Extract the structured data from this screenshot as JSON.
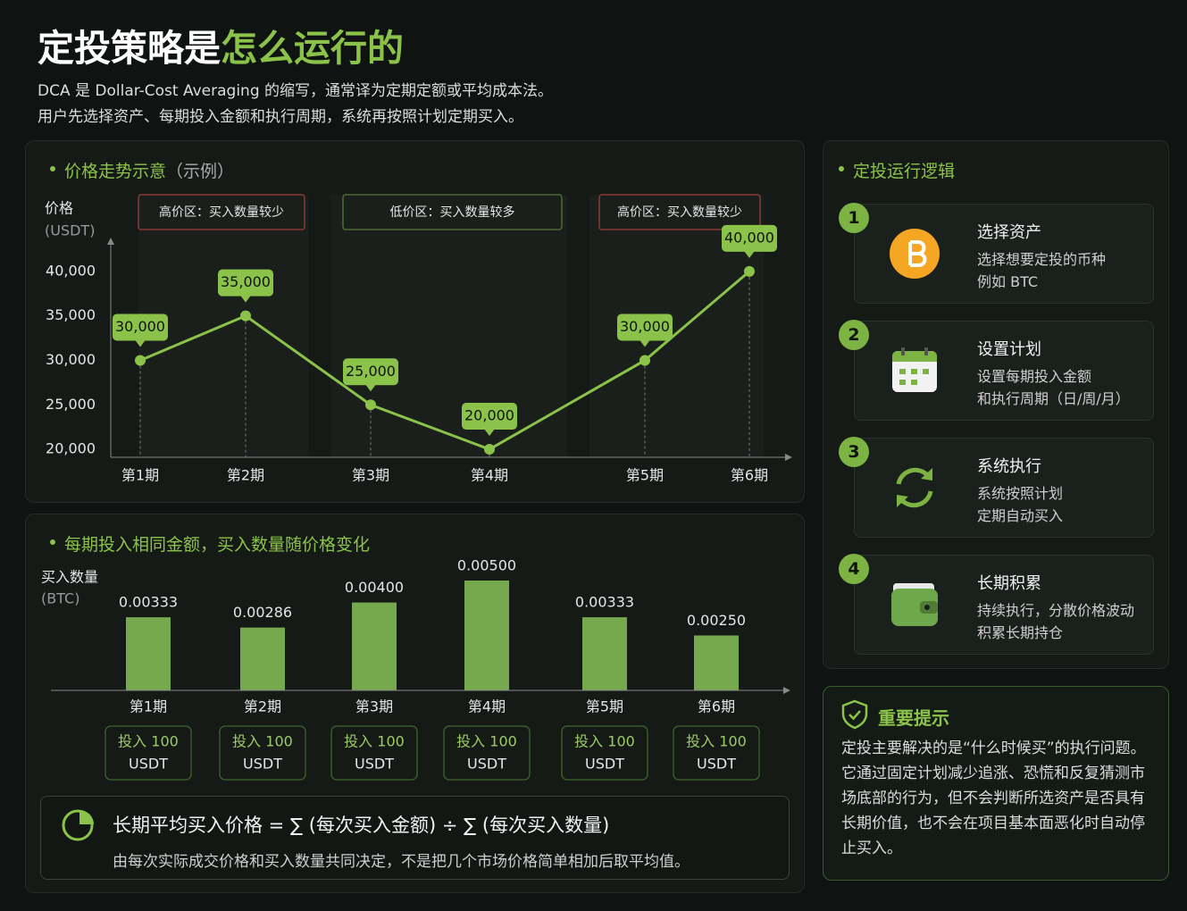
{
  "header": {
    "title_main": "定投策略是",
    "title_accent": "怎么运行的",
    "subtitle": [
      "DCA 是 Dollar-Cost Averaging 的缩写，通常译为定期定额或平均成本法。",
      "用户先选择资产、每期投入金额和执行周期，系统再按照计划定期买入。"
    ]
  },
  "chart_data": [
    {
      "type": "line",
      "title": "价格走势示意",
      "title_note": "（示例）",
      "y_label": "价格",
      "y_unit": "(USDT)",
      "categories": [
        "第1期",
        "第2期",
        "第3期",
        "第4期",
        "第5期",
        "第6期"
      ],
      "values": [
        30000,
        35000,
        25000,
        20000,
        30000,
        40000
      ],
      "value_labels": [
        "30,000",
        "35,000",
        "25,000",
        "20,000",
        "30,000",
        "40,000"
      ],
      "color": "#8bc34a",
      "ylim": [
        19000,
        43000
      ],
      "yticks": [
        {
          "value": 20000,
          "label": "20,000"
        },
        {
          "value": 25000,
          "label": "25,000"
        },
        {
          "value": 30000,
          "label": "30,000"
        },
        {
          "value": 35000,
          "label": "35,000"
        },
        {
          "value": 40000,
          "label": "40,000"
        }
      ],
      "annotations": [
        {
          "text": "高价区：买入数量较少",
          "color": "#8a3a36"
        },
        {
          "text": "低价区：买入数量较多",
          "color": "#4d6b33"
        },
        {
          "text": "高价区：买入数量较少",
          "color": "#8a3a36"
        }
      ]
    },
    {
      "type": "bar",
      "title": "每期投入相同金额，买入数量随价格变化",
      "y_label": "买入数量",
      "y_unit": "(BTC)",
      "categories": [
        "第1期",
        "第2期",
        "第3期",
        "第4期",
        "第5期",
        "第6期"
      ],
      "values": [
        0.00333,
        0.00286,
        0.004,
        0.005,
        0.00333,
        0.0025
      ],
      "value_labels": [
        "0.00333",
        "0.00286",
        "0.00400",
        "0.00500",
        "0.00333",
        "0.00250"
      ],
      "color": "#76a84e",
      "notes": [
        [
          "投入 100",
          "USDT"
        ],
        [
          "投入 100",
          "USDT"
        ],
        [
          "投入 100",
          "USDT"
        ],
        [
          "投入 100",
          "USDT"
        ],
        [
          "投入 100",
          "USDT"
        ],
        [
          "投入 100",
          "USDT"
        ]
      ]
    }
  ],
  "formula": {
    "expression": "长期平均买入价格 = ∑ (每次买入金额) ÷ ∑ (每次买入数量)",
    "description": "由每次实际成交价格和买入数量共同决定，不是把几个市场价格简单相加后取平均值。"
  },
  "steps": {
    "title": "定投运行逻辑",
    "items": [
      {
        "num": 1,
        "title": "选择资产",
        "lines": [
          "选择想要定投的币种",
          "例如 BTC"
        ]
      },
      {
        "num": 2,
        "title": "设置计划",
        "lines": [
          "设置每期投入金额",
          "和执行周期（日/周/月）"
        ]
      },
      {
        "num": 3,
        "title": "系统执行",
        "lines": [
          "系统按照计划",
          "定期自动买入"
        ]
      },
      {
        "num": 4,
        "title": "长期积累",
        "lines": [
          "持续执行，分散价格波动",
          "积累长期持仓"
        ]
      }
    ]
  },
  "tip": {
    "title": "重要提示",
    "text": "定投主要解决的是“什么时候买”的执行问题。它通过固定计划减少追涨、恐慌和反复猜测市场底部的行为，但不会判断所选资产是否具有长期价值，也不会在项目基本面恶化时自动停止买入。"
  }
}
